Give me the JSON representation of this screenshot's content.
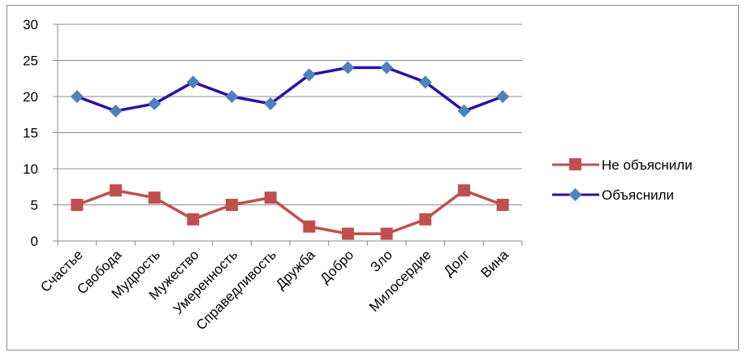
{
  "chart_data": {
    "type": "line",
    "title": "",
    "xlabel": "",
    "ylabel": "",
    "ylim": [
      0,
      30
    ],
    "yticks": [
      0,
      5,
      10,
      15,
      20,
      25,
      30
    ],
    "grid": true,
    "legend_position": "right",
    "categories": [
      "Счастье",
      "Свобода",
      "Мудрость",
      "Мужество",
      "Умеренность",
      "Справедливость",
      "Дружба",
      "Добро",
      "Зло",
      "Милосердие",
      "Долг",
      "Вина"
    ],
    "series": [
      {
        "name": "Не объяснили",
        "color": "#C0504D",
        "marker": "square",
        "values": [
          5,
          7,
          6,
          3,
          5,
          6,
          2,
          1,
          1,
          3,
          7,
          5
        ]
      },
      {
        "name": "Объяснили",
        "color": "#2E0FA8",
        "marker_color": "#4F81BD",
        "marker": "diamond",
        "values": [
          20,
          18,
          19,
          22,
          20,
          19,
          23,
          24,
          24,
          22,
          18,
          20
        ]
      }
    ]
  }
}
